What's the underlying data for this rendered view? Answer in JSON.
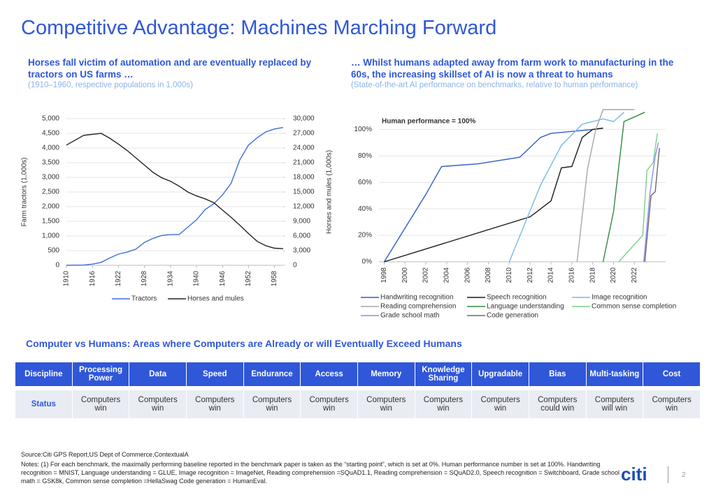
{
  "header": {
    "title": "Competitive Advantage: Machines Marching Forward"
  },
  "chart_data": [
    {
      "type": "line",
      "title": "Horses fall victim of automation and are eventually replaced by tractors on US farms …",
      "subtitle": "(1910–1960, respective populations in 1,000s)",
      "y_label": "Farm tractors (1,000s)",
      "y2_label": "Horses and mules (1,000s)",
      "x": [
        1910,
        1914,
        1916,
        1918,
        1920,
        1922,
        1924,
        1926,
        1928,
        1930,
        1932,
        1934,
        1936,
        1938,
        1940,
        1942,
        1944,
        1946,
        1948,
        1950,
        1952,
        1954,
        1956,
        1958,
        1960
      ],
      "xlim": [
        1910,
        1960
      ],
      "xticks": [
        1910,
        1916,
        1922,
        1928,
        1934,
        1940,
        1946,
        1952,
        1958
      ],
      "ylim": [
        0,
        5000
      ],
      "yticks": [
        0,
        500,
        {
          "value": 1000,
          "label": "1,000"
        },
        {
          "value": 1500,
          "label": "1,500"
        },
        {
          "value": 2000,
          "label": "2,000"
        },
        {
          "value": 2500,
          "label": "2,500"
        },
        {
          "value": 3000,
          "label": "3,000"
        },
        {
          "value": 3500,
          "label": "3,500"
        },
        {
          "value": 4000,
          "label": "4,000"
        },
        {
          "value": 4500,
          "label": "4,500"
        },
        {
          "value": 5000,
          "label": "5,000"
        }
      ],
      "y2lim": [
        0,
        30000
      ],
      "y2ticks": [
        0,
        {
          "value": 3000,
          "label": "3,000"
        },
        {
          "value": 6000,
          "label": "6,000"
        },
        {
          "value": 9000,
          "label": "9,000"
        },
        {
          "value": 12000,
          "label": "12,000"
        },
        {
          "value": 15000,
          "label": "15,000"
        },
        {
          "value": 18000,
          "label": "18,000"
        },
        {
          "value": 21000,
          "label": "21,000"
        },
        {
          "value": 24000,
          "label": "24,000"
        },
        {
          "value": 27000,
          "label": "27,000"
        },
        {
          "value": 30000,
          "label": "30,000"
        }
      ],
      "grid": true,
      "legend": "bottom",
      "series": [
        {
          "name": "Tractors",
          "color": "#3d6fd9",
          "values": [
            0,
            10,
            40,
            100,
            250,
            380,
            450,
            550,
            780,
            920,
            1020,
            1050,
            1050,
            1300,
            1550,
            1900,
            2100,
            2400,
            2800,
            3600,
            4100,
            4350,
            4550,
            4650,
            4700
          ]
        },
        {
          "name": "Horses and mules",
          "color": "#222222",
          "axis": "y2",
          "values": [
            24600,
            26600,
            26800,
            27000,
            26000,
            24800,
            23500,
            22000,
            20500,
            19000,
            17900,
            17200,
            16200,
            15000,
            14200,
            13600,
            12800,
            11300,
            9800,
            8200,
            6500,
            4900,
            4000,
            3500,
            3400
          ]
        }
      ]
    },
    {
      "type": "line",
      "title": "… Whilst humans adapted away from farm work to manufacturing in the 60s, the increasing skillset of AI is now a threat to humans",
      "subtitle": "(State-of-the-art AI performance on benchmarks, relative to human performance)",
      "annotation": "Human performance = 100%",
      "xlim": [
        1997.5,
        2025
      ],
      "xticks": [
        1998,
        2000,
        2002,
        2004,
        2006,
        2008,
        2010,
        2012,
        2014,
        2016,
        2018,
        2020,
        2022
      ],
      "ylim": [
        0,
        115
      ],
      "yticks": [
        {
          "value": 0,
          "label": "0%"
        },
        {
          "value": 20,
          "label": "20%"
        },
        {
          "value": 40,
          "label": "40%"
        },
        {
          "value": 60,
          "label": "60%"
        },
        {
          "value": 80,
          "label": "80%"
        },
        {
          "value": 100,
          "label": "100%"
        }
      ],
      "grid": true,
      "legend": "bottom",
      "series": [
        {
          "name": "Handwriting recognition",
          "color": "#2f5cc9",
          "x": [
            1998,
            2002,
            2003.5,
            2007,
            2011,
            2013,
            2014,
            2018,
            2019
          ],
          "values": [
            0,
            51,
            72,
            74,
            79,
            94,
            97,
            100,
            101
          ]
        },
        {
          "name": "Speech recognition",
          "color": "#1a1a1a",
          "x": [
            1998,
            2012,
            2014,
            2015,
            2016,
            2017,
            2018,
            2019
          ],
          "values": [
            0,
            34,
            46,
            71,
            72,
            94,
            100,
            101
          ]
        },
        {
          "name": "Image recognition",
          "color": "#74b9e8",
          "x": [
            2010,
            2013,
            2015,
            2017,
            2019,
            2020,
            2021
          ],
          "values": [
            0,
            58,
            88,
            104,
            108,
            106,
            113
          ]
        },
        {
          "name": "Reading comprehension",
          "color": "#a6a6a6",
          "x": [
            2016.5,
            2017.5,
            2018.3,
            2019,
            2022
          ],
          "values": [
            0,
            70,
            100,
            115,
            115
          ]
        },
        {
          "name": "Language understanding",
          "color": "#2e8b3e",
          "x": [
            2019,
            2020,
            2021,
            2023
          ],
          "values": [
            0,
            38,
            106,
            113
          ]
        },
        {
          "name": "Common sense completion",
          "color": "#7ccf8a",
          "x": [
            2020.5,
            2022.8,
            2023.2,
            2023.8,
            2024.2
          ],
          "values": [
            0,
            20,
            69,
            75,
            97
          ]
        },
        {
          "name": "Grade school math",
          "color": "#8c8ee8",
          "x": [
            2022.9,
            2023.5,
            2024,
            2024.3
          ],
          "values": [
            0,
            52,
            80,
            90
          ]
        },
        {
          "name": "Code generation",
          "color": "#6b6b6b",
          "x": [
            2023,
            2023.6,
            2024,
            2024.4
          ],
          "values": [
            0,
            50,
            53,
            86
          ]
        }
      ]
    }
  ],
  "table": {
    "title": "Computer vs Humans: Areas where Computers are Already or will Eventually Exceed Humans",
    "rows": [
      [
        "Discipline",
        "Processing Power",
        "Data",
        "Speed",
        "Endurance",
        "Access",
        "Memory",
        "Knowledge Sharing",
        "Upgradable",
        "Bias",
        "Multi-tasking",
        "Cost"
      ],
      [
        "Status",
        "Computers win",
        "Computers win",
        "Computers win",
        "Computers win",
        "Computers win",
        "Computers win",
        "Computers win",
        "Computers win",
        "Computers could win",
        "Computers will win",
        "Computers win"
      ]
    ]
  },
  "footer": {
    "source": "Source:Citi GPS Report,US Dept of Commerce,ContextualA",
    "notes": "Notes: (1) For each benchmark, the maximally performing baseline reported in the benchmark paper is taken as the “starting point”, which is set at 0%. Human performance number is set at 100%. Handwriting recognition = MNIST, Language understanding = GLUE, Image recognition = ImageNet, Reading comprehension =SQuAD1.1, Reading comprehension = SQuAD2.0, Speech recognition = Switchboard, Grade school math = GSK8k, Common sense completion =HellaSwag Code generation = HumanEval.",
    "logo": "citi",
    "page": "2"
  }
}
